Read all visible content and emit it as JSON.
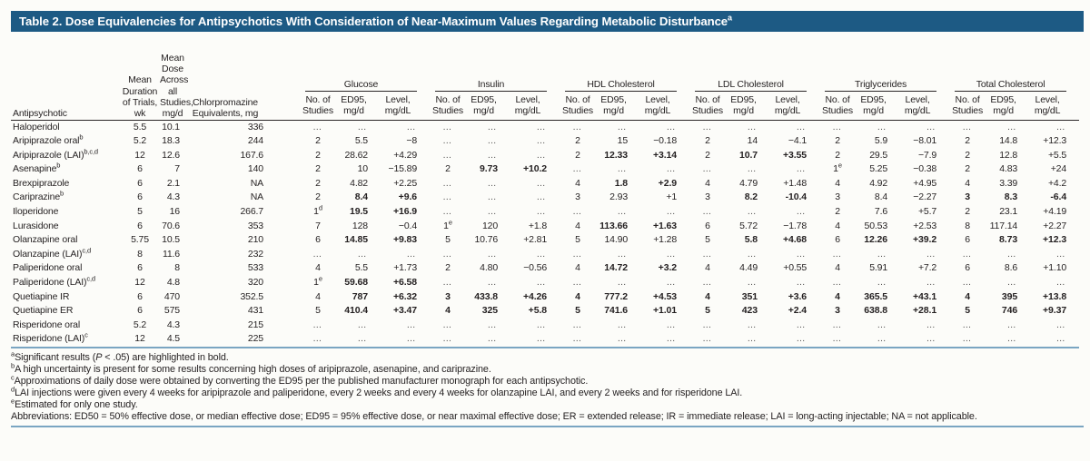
{
  "title": {
    "text": "Table 2. Dose Equivalencies for Antipsychotics With Consideration of Near-Maximum Values Regarding Metabolic Disturbance",
    "sup": "a"
  },
  "colors": {
    "title_bar_bg": "#1d5a84",
    "title_text": "#ffffff",
    "rule_blue": "#7aa5c2",
    "body_text": "#231f20"
  },
  "table": {
    "corner_header": "Antipsychotic",
    "lead_columns": [
      {
        "lines": [
          "Mean",
          "Duration",
          "of Trials,",
          "wk"
        ]
      },
      {
        "lines": [
          "Mean",
          "Dose",
          "Across",
          "all",
          "Studies,",
          "mg/d"
        ]
      },
      {
        "lines": [
          "Chlorpromazine",
          "Equivalents, mg"
        ]
      }
    ],
    "groups": [
      "Glucose",
      "Insulin",
      "HDL Cholesterol",
      "LDL Cholesterol",
      "Triglycerides",
      "Total Cholesterol"
    ],
    "sub_columns": [
      [
        "No. of",
        "Studies"
      ],
      [
        "ED95,",
        "mg/d"
      ],
      [
        "Level,",
        "mg/dL"
      ]
    ],
    "rows": [
      {
        "name": "Haloperidol",
        "sup": "",
        "cols": [
          "5.5",
          "10.1",
          "336"
        ],
        "groups": [
          [
            "…",
            "…",
            "…"
          ],
          [
            "…",
            "…",
            "…"
          ],
          [
            "…",
            "…",
            "…"
          ],
          [
            "…",
            "…",
            "…"
          ],
          [
            "…",
            "…",
            "…"
          ],
          [
            "…",
            "…",
            "…"
          ]
        ]
      },
      {
        "name": "Aripiprazole oral",
        "sup": "b",
        "cols": [
          "5.2",
          "18.3",
          "244"
        ],
        "groups": [
          [
            "2",
            "5.5",
            "−8"
          ],
          [
            "…",
            "…",
            "…"
          ],
          [
            "2",
            "15",
            "−0.18"
          ],
          [
            "2",
            "14",
            "−4.1"
          ],
          [
            "2",
            "5.9",
            "−8.01"
          ],
          [
            "2",
            "14.8",
            "+12.3"
          ]
        ]
      },
      {
        "name": "Aripiprazole (LAI)",
        "sup": "b,c,d",
        "cols": [
          "12",
          "12.6",
          "167.6"
        ],
        "groups": [
          [
            "2",
            "28.62",
            "+4.29"
          ],
          [
            "…",
            "…",
            "…"
          ],
          [
            "2",
            "*12.33",
            "*+3.14"
          ],
          [
            "2",
            "*10.7",
            "*+3.55"
          ],
          [
            "2",
            "29.5",
            "−7.9"
          ],
          [
            "2",
            "12.8",
            "+5.5"
          ]
        ]
      },
      {
        "name": "Asenapine",
        "sup": "b",
        "cols": [
          "6",
          "7",
          "140"
        ],
        "groups": [
          [
            "2",
            "10",
            "−15.89"
          ],
          [
            "2",
            "*9.73",
            "*+10.2"
          ],
          [
            "…",
            "…",
            "…"
          ],
          [
            "…",
            "…",
            "…"
          ],
          [
            "1^e",
            "5.25",
            "−0.38"
          ],
          [
            "2",
            "4.83",
            "+24"
          ]
        ]
      },
      {
        "name": "Brexpiprazole",
        "sup": "",
        "cols": [
          "6",
          "2.1",
          "NA"
        ],
        "groups": [
          [
            "2",
            "4.82",
            "+2.25"
          ],
          [
            "…",
            "…",
            "…"
          ],
          [
            "4",
            "*1.8",
            "*+2.9"
          ],
          [
            "4",
            "4.79",
            "+1.48"
          ],
          [
            "4",
            "4.92",
            "+4.95"
          ],
          [
            "4",
            "3.39",
            "+4.2"
          ]
        ]
      },
      {
        "name": "Cariprazine",
        "sup": "b",
        "cols": [
          "6",
          "4.3",
          "NA"
        ],
        "groups": [
          [
            "2",
            "*8.4",
            "*+9.6"
          ],
          [
            "…",
            "…",
            "…"
          ],
          [
            "3",
            "2.93",
            "+1"
          ],
          [
            "3",
            "*8.2",
            "*-10.4"
          ],
          [
            "3",
            "8.4",
            "−2.27"
          ],
          [
            "*3",
            "*8.3",
            "*-6.4"
          ]
        ]
      },
      {
        "name": "Iloperidone",
        "sup": "",
        "cols": [
          "5",
          "16",
          "266.7"
        ],
        "groups": [
          [
            "1^d",
            "*19.5",
            "*+16.9"
          ],
          [
            "…",
            "…",
            "…"
          ],
          [
            "…",
            "…",
            "…"
          ],
          [
            "…",
            "…",
            "…"
          ],
          [
            "2",
            "7.6",
            "+5.7"
          ],
          [
            "2",
            "23.1",
            "+4.19"
          ]
        ]
      },
      {
        "name": "Lurasidone",
        "sup": "",
        "cols": [
          "6",
          "70.6",
          "353"
        ],
        "groups": [
          [
            "7",
            "128",
            "−0.4"
          ],
          [
            "1^e",
            "120",
            "+1.8"
          ],
          [
            "4",
            "*113.66",
            "*+1.63"
          ],
          [
            "6",
            "5.72",
            "−1.78"
          ],
          [
            "4",
            "50.53",
            "+2.53"
          ],
          [
            "8",
            "117.14",
            "+2.27"
          ]
        ]
      },
      {
        "name": "Olanzapine oral",
        "sup": "",
        "cols": [
          "5.75",
          "10.5",
          "210"
        ],
        "groups": [
          [
            "6",
            "*14.85",
            "*+9.83"
          ],
          [
            "5",
            "10.76",
            "+2.81"
          ],
          [
            "5",
            "14.90",
            "+1.28"
          ],
          [
            "5",
            "*5.8",
            "*+4.68"
          ],
          [
            "6",
            "*12.26",
            "*+39.2"
          ],
          [
            "6",
            "*8.73",
            "*+12.3"
          ]
        ]
      },
      {
        "name": "Olanzapine (LAI)",
        "sup": "c,d",
        "cols": [
          "8",
          "11.6",
          "232"
        ],
        "groups": [
          [
            "…",
            "…",
            "…"
          ],
          [
            "…",
            "…",
            "…"
          ],
          [
            "…",
            "…",
            "…"
          ],
          [
            "…",
            "…",
            "…"
          ],
          [
            "…",
            "…",
            "…"
          ],
          [
            "…",
            "…",
            "…"
          ]
        ]
      },
      {
        "name": "Paliperidone oral",
        "sup": "",
        "cols": [
          "6",
          "8",
          "533"
        ],
        "groups": [
          [
            "4",
            "5.5",
            "+1.73"
          ],
          [
            "2",
            "4.80",
            "−0.56"
          ],
          [
            "4",
            "*14.72",
            "*+3.2"
          ],
          [
            "4",
            "4.49",
            "+0.55"
          ],
          [
            "4",
            "5.91",
            "+7.2"
          ],
          [
            "6",
            "8.6",
            "+1.10"
          ]
        ]
      },
      {
        "name": "Paliperidone (LAI)",
        "sup": "c,d",
        "cols": [
          "12",
          "4.8",
          "320"
        ],
        "groups": [
          [
            "1^e",
            "*59.68",
            "*+6.58"
          ],
          [
            "…",
            "…",
            "…"
          ],
          [
            "…",
            "…",
            "…"
          ],
          [
            "…",
            "…",
            "…"
          ],
          [
            "…",
            "…",
            "…"
          ],
          [
            "…",
            "…",
            "…"
          ]
        ]
      },
      {
        "name": "Quetiapine IR",
        "sup": "",
        "cols": [
          "6",
          "470",
          "352.5"
        ],
        "groups": [
          [
            "4",
            "*787",
            "*+6.32"
          ],
          [
            "*3",
            "*433.8",
            "*+4.26"
          ],
          [
            "*4",
            "*777.2",
            "*+4.53"
          ],
          [
            "*4",
            "*351",
            "*+3.6"
          ],
          [
            "*4",
            "*365.5",
            "*+43.1"
          ],
          [
            "*4",
            "*395",
            "*+13.8"
          ]
        ]
      },
      {
        "name": "Quetiapine ER",
        "sup": "",
        "cols": [
          "6",
          "575",
          "431"
        ],
        "groups": [
          [
            "5",
            "*410.4",
            "*+3.47"
          ],
          [
            "*4",
            "*325",
            "*+5.8"
          ],
          [
            "*5",
            "*741.6",
            "*+1.01"
          ],
          [
            "*5",
            "*423",
            "*+2.4"
          ],
          [
            "*3",
            "*638.8",
            "*+28.1"
          ],
          [
            "*5",
            "*746",
            "*+9.37"
          ]
        ]
      },
      {
        "name": "Risperidone oral",
        "sup": "",
        "cols": [
          "5.2",
          "4.3",
          "215"
        ],
        "groups": [
          [
            "…",
            "…",
            "…"
          ],
          [
            "…",
            "…",
            "…"
          ],
          [
            "…",
            "…",
            "…"
          ],
          [
            "…",
            "…",
            "…"
          ],
          [
            "…",
            "…",
            "…"
          ],
          [
            "…",
            "…",
            "…"
          ]
        ]
      },
      {
        "name": "Risperidone (LAI)",
        "sup": "c",
        "cols": [
          "12",
          "4.5",
          "225"
        ],
        "groups": [
          [
            "…",
            "…",
            "…"
          ],
          [
            "…",
            "…",
            "…"
          ],
          [
            "…",
            "…",
            "…"
          ],
          [
            "…",
            "…",
            "…"
          ],
          [
            "…",
            "…",
            "…"
          ],
          [
            "…",
            "…",
            "…"
          ]
        ]
      }
    ]
  },
  "footnotes": [
    {
      "sup": "a",
      "text": "Significant results (_P_ < .05) are highlighted in bold."
    },
    {
      "sup": "b",
      "text": "A high uncertainty is present for some results concerning high doses of aripiprazole, asenapine, and cariprazine."
    },
    {
      "sup": "c",
      "text": "Approximations of daily dose were obtained by converting the ED95 per the published manufacturer monograph for each antipsychotic."
    },
    {
      "sup": "d",
      "text": "LAI injections were given every 4 weeks for aripiprazole and paliperidone, every 2 weeks and every 4 weeks for olanzapine LAI, and every 2 weeks and for risperidone LAI."
    },
    {
      "sup": "e",
      "text": "Estimated for only one study."
    },
    {
      "sup": "",
      "text": "Abbreviations: ED50 = 50% effective dose, or median effective dose; ED95 = 95% effective dose, or near maximal effective dose; ER = extended release; IR = immediate release; LAI = long-acting injectable; NA = not applicable."
    }
  ]
}
